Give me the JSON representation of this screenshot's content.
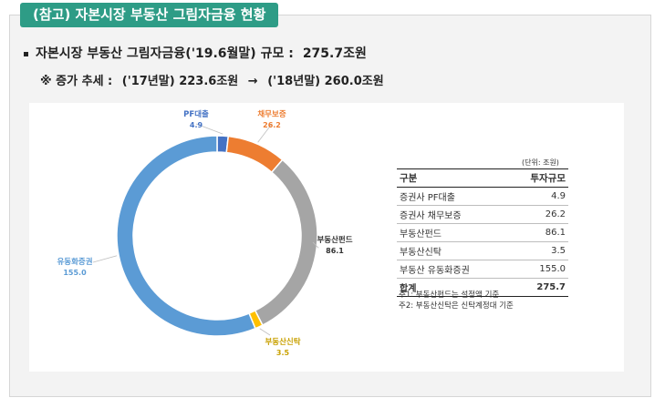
{
  "header": {
    "title": "(참고) 자본시장 부동산 그림자금융 현황"
  },
  "summary": {
    "label": "자본시장 부동산 그림자금융('19.6월말) 규모 :",
    "value": "275.7조원"
  },
  "trend": {
    "label": "※ 증가 추세 :",
    "y2017": "('17년말) 223.6조원",
    "arrow": "→",
    "y2018": "('18년말) 260.0조원"
  },
  "chart_data": {
    "type": "pie",
    "subtype": "donut",
    "categories": [
      "PF대출",
      "채무보증",
      "부동산펀드",
      "부동산신탁",
      "유동화증권"
    ],
    "values": [
      4.9,
      26.2,
      86.1,
      3.5,
      155.0
    ],
    "value_labels": [
      "4.9",
      "26.2",
      "86.1",
      "3.5",
      "155.0"
    ],
    "colors": [
      "#4472c4",
      "#ed7d31",
      "#a5a5a5",
      "#ffc000",
      "#5b9bd5"
    ],
    "label_colors": [
      "#4472c4",
      "#ed7d31",
      "#333333",
      "#c8a000",
      "#5b9bd5"
    ],
    "start_angle_deg": 0,
    "direction": "clockwise"
  },
  "table": {
    "unit": "(단위: 조원)",
    "headers": [
      "구분",
      "투자규모"
    ],
    "rows": [
      [
        "증권사 PF대출",
        "4.9"
      ],
      [
        "증권사 채무보증",
        "26.2"
      ],
      [
        "부동산펀드",
        "86.1"
      ],
      [
        "부동산신탁",
        "3.5"
      ],
      [
        "부동산 유동화증권",
        "155.0"
      ]
    ],
    "total": [
      "합계",
      "275.7"
    ]
  },
  "notes": [
    "주1: 부동산펀드는 설정액 기준",
    "주2: 부동산신탁은 신탁계정대 기준"
  ]
}
